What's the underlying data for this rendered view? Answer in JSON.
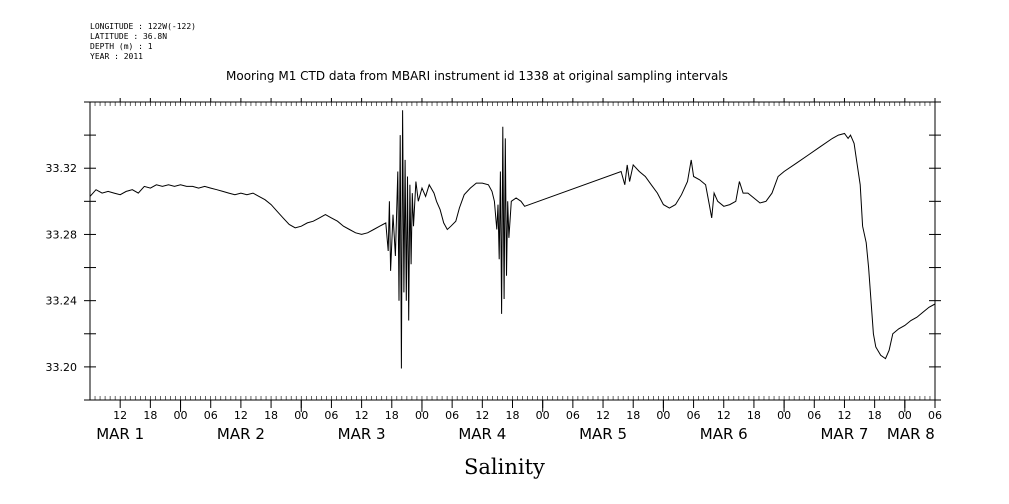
{
  "meta": {
    "longitude": "LONGITUDE : 122W(-122)",
    "latitude": "LATITUDE : 36.8N",
    "depth": "DEPTH (m) : 1",
    "year": "YEAR : 2011"
  },
  "chart_data": {
    "type": "line",
    "title": "Mooring M1 CTD data from MBARI instrument id 1338 at original sampling intervals",
    "xlabel": "Salinity",
    "ylabel": "",
    "xlim": [
      0.25,
      7.25
    ],
    "ylim": [
      33.18,
      33.36
    ],
    "yticks": [
      33.2,
      33.24,
      33.28,
      33.32
    ],
    "ytick_labels": [
      "33.20",
      "33.24",
      "33.28",
      "33.32"
    ],
    "xtick_hours": [
      {
        "x": 0.5,
        "label": "12"
      },
      {
        "x": 0.75,
        "label": "18"
      },
      {
        "x": 1.0,
        "label": "00"
      },
      {
        "x": 1.25,
        "label": "06"
      },
      {
        "x": 1.5,
        "label": "12"
      },
      {
        "x": 1.75,
        "label": "18"
      },
      {
        "x": 2.0,
        "label": "00"
      },
      {
        "x": 2.25,
        "label": "06"
      },
      {
        "x": 2.5,
        "label": "12"
      },
      {
        "x": 2.75,
        "label": "18"
      },
      {
        "x": 3.0,
        "label": "00"
      },
      {
        "x": 3.25,
        "label": "06"
      },
      {
        "x": 3.5,
        "label": "12"
      },
      {
        "x": 3.75,
        "label": "18"
      },
      {
        "x": 4.0,
        "label": "00"
      },
      {
        "x": 4.25,
        "label": "06"
      },
      {
        "x": 4.5,
        "label": "12"
      },
      {
        "x": 4.75,
        "label": "18"
      },
      {
        "x": 5.0,
        "label": "00"
      },
      {
        "x": 5.25,
        "label": "06"
      },
      {
        "x": 5.5,
        "label": "12"
      },
      {
        "x": 5.75,
        "label": "18"
      },
      {
        "x": 6.0,
        "label": "00"
      },
      {
        "x": 6.25,
        "label": "06"
      },
      {
        "x": 6.5,
        "label": "12"
      },
      {
        "x": 6.75,
        "label": "18"
      },
      {
        "x": 7.0,
        "label": "00"
      },
      {
        "x": 7.25,
        "label": "06"
      }
    ],
    "xtick_days": [
      {
        "x": 0.5,
        "label": "MAR  1"
      },
      {
        "x": 1.5,
        "label": "MAR  2"
      },
      {
        "x": 2.5,
        "label": "MAR  3"
      },
      {
        "x": 3.5,
        "label": "MAR  4"
      },
      {
        "x": 4.5,
        "label": "MAR  5"
      },
      {
        "x": 5.5,
        "label": "MAR  6"
      },
      {
        "x": 6.5,
        "label": "MAR  7"
      },
      {
        "x": 7.05,
        "label": "MAR  8"
      }
    ],
    "series": [
      {
        "color": "#000000",
        "points": [
          [
            0.25,
            33.303
          ],
          [
            0.3,
            33.307
          ],
          [
            0.35,
            33.305
          ],
          [
            0.4,
            33.306
          ],
          [
            0.45,
            33.305
          ],
          [
            0.5,
            33.304
          ],
          [
            0.55,
            33.306
          ],
          [
            0.6,
            33.307
          ],
          [
            0.65,
            33.305
          ],
          [
            0.7,
            33.309
          ],
          [
            0.75,
            33.308
          ],
          [
            0.8,
            33.31
          ],
          [
            0.85,
            33.309
          ],
          [
            0.9,
            33.31
          ],
          [
            0.95,
            33.309
          ],
          [
            1.0,
            33.31
          ],
          [
            1.05,
            33.309
          ],
          [
            1.1,
            33.309
          ],
          [
            1.15,
            33.308
          ],
          [
            1.2,
            33.309
          ],
          [
            1.25,
            33.308
          ],
          [
            1.3,
            33.307
          ],
          [
            1.35,
            33.306
          ],
          [
            1.4,
            33.305
          ],
          [
            1.45,
            33.304
          ],
          [
            1.5,
            33.305
          ],
          [
            1.55,
            33.304
          ],
          [
            1.6,
            33.305
          ],
          [
            1.65,
            33.303
          ],
          [
            1.7,
            33.301
          ],
          [
            1.75,
            33.298
          ],
          [
            1.8,
            33.294
          ],
          [
            1.85,
            33.29
          ],
          [
            1.9,
            33.286
          ],
          [
            1.95,
            33.284
          ],
          [
            2.0,
            33.285
          ],
          [
            2.05,
            33.287
          ],
          [
            2.1,
            33.288
          ],
          [
            2.15,
            33.29
          ],
          [
            2.2,
            33.292
          ],
          [
            2.25,
            33.29
          ],
          [
            2.3,
            33.288
          ],
          [
            2.35,
            33.285
          ],
          [
            2.4,
            33.283
          ],
          [
            2.45,
            33.281
          ],
          [
            2.5,
            33.28
          ],
          [
            2.55,
            33.281
          ],
          [
            2.6,
            33.283
          ],
          [
            2.65,
            33.285
          ],
          [
            2.7,
            33.287
          ],
          [
            2.72,
            33.27
          ],
          [
            2.73,
            33.3
          ],
          [
            2.74,
            33.258
          ],
          [
            2.76,
            33.292
          ],
          [
            2.78,
            33.267
          ],
          [
            2.8,
            33.318
          ],
          [
            2.81,
            33.24
          ],
          [
            2.82,
            33.34
          ],
          [
            2.83,
            33.199
          ],
          [
            2.84,
            33.355
          ],
          [
            2.85,
            33.245
          ],
          [
            2.86,
            33.325
          ],
          [
            2.87,
            33.24
          ],
          [
            2.88,
            33.315
          ],
          [
            2.89,
            33.228
          ],
          [
            2.9,
            33.31
          ],
          [
            2.91,
            33.262
          ],
          [
            2.92,
            33.305
          ],
          [
            2.93,
            33.285
          ],
          [
            2.95,
            33.312
          ],
          [
            2.97,
            33.3
          ],
          [
            3.0,
            33.308
          ],
          [
            3.03,
            33.303
          ],
          [
            3.06,
            33.31
          ],
          [
            3.1,
            33.305
          ],
          [
            3.12,
            33.3
          ],
          [
            3.15,
            33.295
          ],
          [
            3.18,
            33.287
          ],
          [
            3.21,
            33.283
          ],
          [
            3.24,
            33.285
          ],
          [
            3.28,
            33.288
          ],
          [
            3.31,
            33.296
          ],
          [
            3.35,
            33.304
          ],
          [
            3.4,
            33.308
          ],
          [
            3.45,
            33.311
          ],
          [
            3.5,
            33.311
          ],
          [
            3.55,
            33.31
          ],
          [
            3.58,
            33.306
          ],
          [
            3.6,
            33.3
          ],
          [
            3.62,
            33.283
          ],
          [
            3.63,
            33.298
          ],
          [
            3.64,
            33.265
          ],
          [
            3.65,
            33.318
          ],
          [
            3.66,
            33.232
          ],
          [
            3.67,
            33.345
          ],
          [
            3.68,
            33.241
          ],
          [
            3.69,
            33.338
          ],
          [
            3.7,
            33.255
          ],
          [
            3.71,
            33.3
          ],
          [
            3.72,
            33.278
          ],
          [
            3.74,
            33.3
          ],
          [
            3.78,
            33.302
          ],
          [
            3.82,
            33.3
          ],
          [
            3.85,
            33.297
          ],
          [
            4.65,
            33.318
          ],
          [
            4.68,
            33.31
          ],
          [
            4.7,
            33.322
          ],
          [
            4.72,
            33.312
          ],
          [
            4.75,
            33.322
          ],
          [
            4.8,
            33.318
          ],
          [
            4.85,
            33.315
          ],
          [
            4.9,
            33.31
          ],
          [
            4.95,
            33.305
          ],
          [
            5.0,
            33.298
          ],
          [
            5.05,
            33.296
          ],
          [
            5.1,
            33.298
          ],
          [
            5.15,
            33.304
          ],
          [
            5.2,
            33.312
          ],
          [
            5.23,
            33.325
          ],
          [
            5.25,
            33.315
          ],
          [
            5.3,
            33.313
          ],
          [
            5.35,
            33.31
          ],
          [
            5.38,
            33.298
          ],
          [
            5.4,
            33.29
          ],
          [
            5.42,
            33.305
          ],
          [
            5.45,
            33.3
          ],
          [
            5.5,
            33.297
          ],
          [
            5.55,
            33.298
          ],
          [
            5.6,
            33.3
          ],
          [
            5.63,
            33.312
          ],
          [
            5.66,
            33.305
          ],
          [
            5.7,
            33.305
          ],
          [
            5.75,
            33.302
          ],
          [
            5.8,
            33.299
          ],
          [
            5.85,
            33.3
          ],
          [
            5.9,
            33.305
          ],
          [
            5.95,
            33.315
          ],
          [
            6.0,
            33.318
          ],
          [
            6.1,
            33.323
          ],
          [
            6.2,
            33.328
          ],
          [
            6.3,
            33.333
          ],
          [
            6.4,
            33.338
          ],
          [
            6.45,
            33.34
          ],
          [
            6.5,
            33.341
          ],
          [
            6.53,
            33.338
          ],
          [
            6.55,
            33.34
          ],
          [
            6.58,
            33.335
          ],
          [
            6.6,
            33.325
          ],
          [
            6.63,
            33.31
          ],
          [
            6.65,
            33.285
          ],
          [
            6.68,
            33.275
          ],
          [
            6.7,
            33.26
          ],
          [
            6.72,
            33.24
          ],
          [
            6.74,
            33.22
          ],
          [
            6.76,
            33.212
          ],
          [
            6.8,
            33.207
          ],
          [
            6.84,
            33.205
          ],
          [
            6.87,
            33.21
          ],
          [
            6.9,
            33.22
          ],
          [
            6.95,
            33.223
          ],
          [
            7.0,
            33.225
          ],
          [
            7.05,
            33.228
          ],
          [
            7.1,
            33.23
          ],
          [
            7.15,
            33.233
          ],
          [
            7.2,
            33.236
          ],
          [
            7.25,
            33.238
          ]
        ]
      }
    ]
  }
}
